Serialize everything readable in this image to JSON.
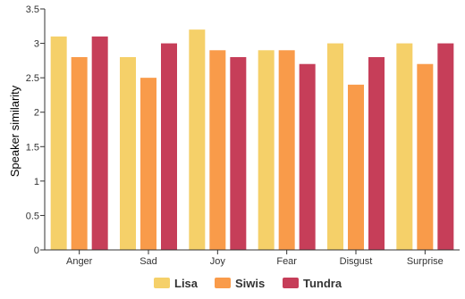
{
  "chart_data": {
    "type": "bar",
    "title": "",
    "xlabel": "",
    "ylabel": "Speaker similarity",
    "ylim": [
      0,
      3.5
    ],
    "yticks": [
      "0",
      "0.5",
      "1",
      "1.5",
      "2",
      "2.5",
      "3",
      "3.5"
    ],
    "categories": [
      "Anger",
      "Sad",
      "Joy",
      "Fear",
      "Disgust",
      "Surprise"
    ],
    "series": [
      {
        "name": "Lisa",
        "color": "#F5D069",
        "values": [
          3.1,
          2.8,
          3.2,
          2.9,
          3.0,
          3.0
        ]
      },
      {
        "name": "Siwis",
        "color": "#F99B4A",
        "values": [
          2.8,
          2.5,
          2.9,
          2.9,
          2.4,
          2.7
        ]
      },
      {
        "name": "Tundra",
        "color": "#C63E59",
        "values": [
          3.1,
          3.0,
          2.8,
          2.7,
          2.8,
          3.0
        ]
      }
    ],
    "grid": false,
    "legend_position": "bottom-center"
  }
}
